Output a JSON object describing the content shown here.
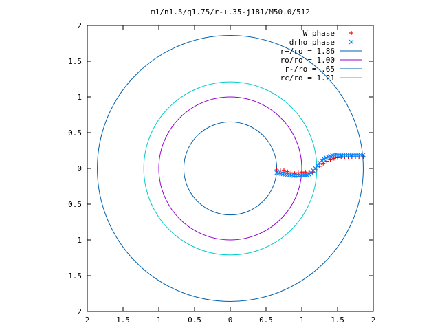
{
  "chart_data": {
    "type": "scatter",
    "title": "m1/n1.5/q1.75/r-+.35-j181/M50.0/512",
    "xlim": [
      -2,
      2
    ],
    "ylim": [
      -2,
      2
    ],
    "x_ticks": [
      {
        "value": -2,
        "label": "2"
      },
      {
        "value": -1.5,
        "label": "1.5"
      },
      {
        "value": -1,
        "label": "1"
      },
      {
        "value": -0.5,
        "label": "0.5"
      },
      {
        "value": 0,
        "label": "0"
      },
      {
        "value": 0.5,
        "label": "0.5"
      },
      {
        "value": 1,
        "label": "1"
      },
      {
        "value": 1.5,
        "label": "1.5"
      },
      {
        "value": 2,
        "label": "2"
      }
    ],
    "y_ticks": [
      {
        "value": 2,
        "label": "2"
      },
      {
        "value": 1.5,
        "label": "1.5"
      },
      {
        "value": 1,
        "label": "1"
      },
      {
        "value": 0.5,
        "label": "0.5"
      },
      {
        "value": 0,
        "label": "0"
      },
      {
        "value": -0.5,
        "label": "0.5"
      },
      {
        "value": -1,
        "label": "1"
      },
      {
        "value": -1.5,
        "label": "1.5"
      },
      {
        "value": -2,
        "label": "2"
      }
    ],
    "grid": false,
    "legend_position": "top-right",
    "series": [
      {
        "name": "W phase",
        "kind": "points",
        "marker": "+",
        "color": "#ff0000",
        "x": [
          0.65,
          0.7,
          0.75,
          0.8,
          0.85,
          0.9,
          0.95,
          1.0,
          1.05,
          1.1,
          1.15,
          1.2,
          1.25,
          1.3,
          1.35,
          1.4,
          1.45,
          1.5,
          1.55,
          1.6,
          1.65,
          1.7,
          1.75,
          1.8,
          1.86
        ],
        "y": [
          -0.02,
          -0.025,
          -0.03,
          -0.045,
          -0.06,
          -0.07,
          -0.06,
          -0.05,
          -0.05,
          -0.06,
          -0.05,
          -0.02,
          0.03,
          0.07,
          0.1,
          0.12,
          0.14,
          0.15,
          0.155,
          0.16,
          0.16,
          0.16,
          0.16,
          0.16,
          0.16
        ]
      },
      {
        "name": "drho phase",
        "kind": "points",
        "marker": "x",
        "color": "#0080ff",
        "x": [
          0.65,
          0.68,
          0.71,
          0.74,
          0.77,
          0.8,
          0.83,
          0.86,
          0.89,
          0.92,
          0.95,
          0.98,
          1.01,
          1.04,
          1.07,
          1.1,
          1.13,
          1.16,
          1.19,
          1.22,
          1.25,
          1.28,
          1.31,
          1.34,
          1.37,
          1.4,
          1.43,
          1.46,
          1.49,
          1.52,
          1.55,
          1.58,
          1.61,
          1.64,
          1.67,
          1.7,
          1.73,
          1.76,
          1.79,
          1.82,
          1.86
        ],
        "y": [
          -0.06,
          -0.065,
          -0.07,
          -0.075,
          -0.08,
          -0.085,
          -0.09,
          -0.095,
          -0.1,
          -0.1,
          -0.1,
          -0.095,
          -0.09,
          -0.09,
          -0.09,
          -0.08,
          -0.06,
          -0.03,
          0.0,
          0.04,
          0.08,
          0.11,
          0.13,
          0.15,
          0.16,
          0.17,
          0.18,
          0.185,
          0.19,
          0.19,
          0.19,
          0.19,
          0.19,
          0.19,
          0.19,
          0.19,
          0.19,
          0.19,
          0.19,
          0.19,
          0.19
        ]
      },
      {
        "name": "r+/ro = 1.86",
        "kind": "circle",
        "radius": 1.86,
        "color": "#0060ad"
      },
      {
        "name": "ro/ro = 1.00",
        "kind": "circle",
        "radius": 1.0,
        "color": "#9400d3"
      },
      {
        "name": "r-/ro = .65",
        "kind": "circle",
        "radius": 0.65,
        "color": "#0060ad"
      },
      {
        "name": "rc/ro = 1.21",
        "kind": "circle",
        "radius": 1.21,
        "color": "#00cccc"
      }
    ]
  }
}
